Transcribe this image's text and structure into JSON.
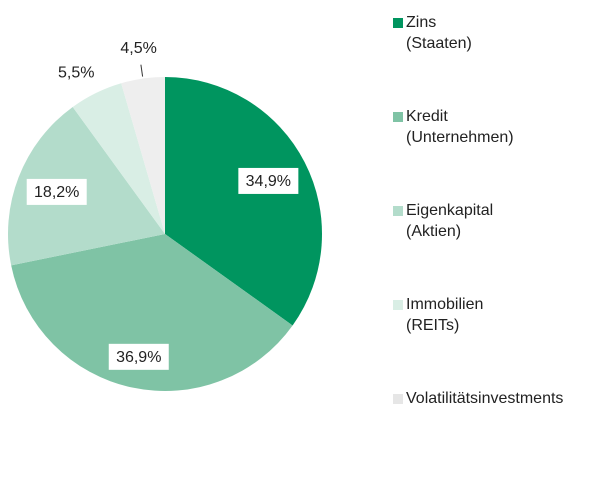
{
  "chart_data": {
    "type": "pie",
    "categories": [
      "Zins\n(Staaten)",
      "Kredit\n(Unternehmen)",
      "Eigenkapital\n(Aktien)",
      "Immobilien\n(REITs)",
      "Volatilitätsinvestments"
    ],
    "values": [
      34.9,
      36.9,
      18.2,
      5.5,
      4.5
    ],
    "value_labels": [
      "34,9%",
      "36,9%",
      "18,2%",
      "5,5%",
      "4,5%"
    ],
    "colors": [
      "#00955f",
      "#7fc3a5",
      "#b3dccb",
      "#d9eee5",
      "#eeeeee"
    ],
    "legend": "right"
  }
}
